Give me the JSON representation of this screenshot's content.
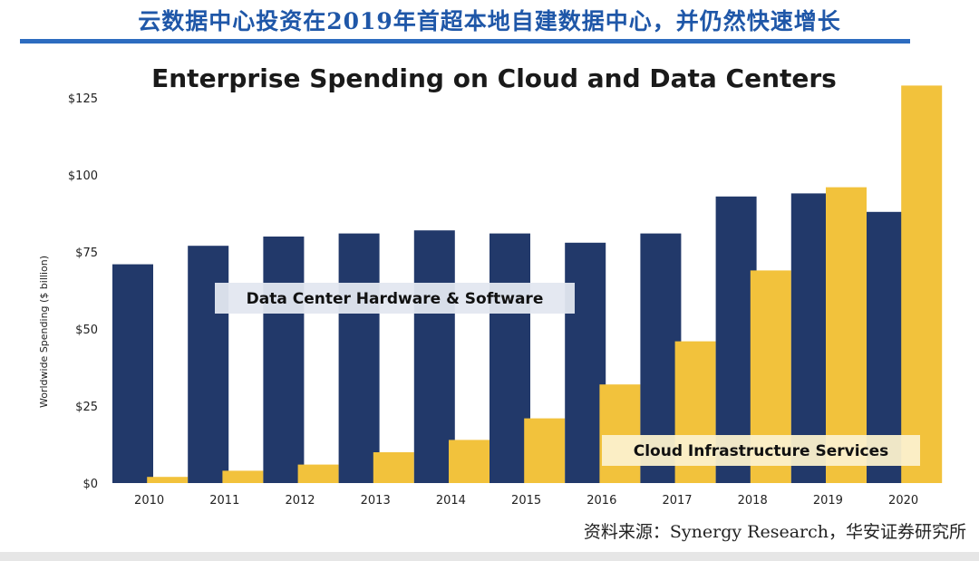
{
  "header": {
    "title": "云数据中心投资在2019年首超本地自建数据中心，并仍然快速增长"
  },
  "colors": {
    "header_text": "#1f57a8",
    "header_rule": "#2d6cc0",
    "series_dc": "#22396a",
    "series_cloud": "#f2c23c",
    "label_box_dc": "#e3e7f0",
    "label_box_cloud": "#fbf0cc"
  },
  "chart_data": {
    "type": "bar",
    "title": "Enterprise Spending on Cloud and Data Centers",
    "ylabel": "Worldwide Spending ($ billion)",
    "xlabel": "",
    "categories": [
      "2010",
      "2011",
      "2012",
      "2013",
      "2014",
      "2015",
      "2016",
      "2017",
      "2018",
      "2019",
      "2020"
    ],
    "series": [
      {
        "name": "Data Center Hardware & Software",
        "values": [
          71,
          77,
          80,
          81,
          82,
          81,
          78,
          81,
          93,
          94,
          88
        ]
      },
      {
        "name": "Cloud Infrastructure Services",
        "values": [
          2,
          4,
          6,
          10,
          14,
          21,
          32,
          46,
          69,
          96,
          129
        ]
      }
    ],
    "yticks": [
      "$0",
      "$25",
      "$50",
      "$75",
      "$100",
      "$125"
    ],
    "ytick_values": [
      0,
      25,
      50,
      75,
      100,
      125
    ],
    "ylim": [
      0,
      130
    ],
    "grid": false,
    "legend": "inline labels"
  },
  "source": "资料来源：Synergy Research，华安证券研究所"
}
